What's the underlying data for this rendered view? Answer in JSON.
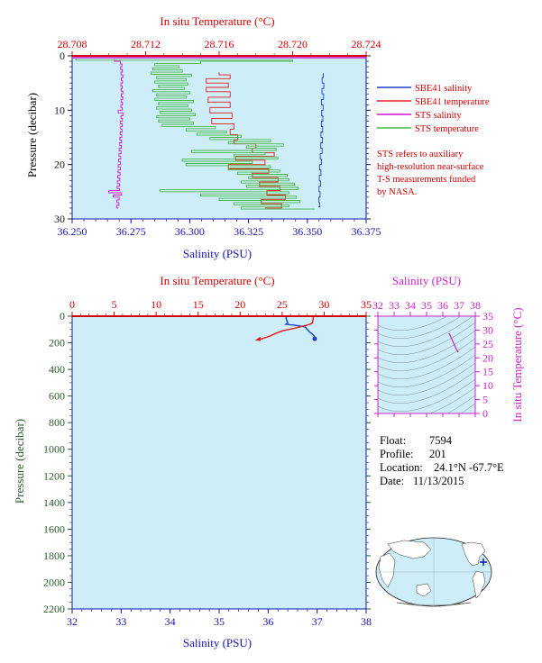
{
  "colors": {
    "plot_bg": "#cdeef9",
    "salinity_axis": "#1414b4",
    "temperature_axis": "#d40000",
    "sts_axis": "#cc22cc",
    "pressure_axis": "#2b5a2b",
    "sbe_salinity": "#1a3fc8",
    "sbe_temperature": "#e41a1a",
    "sts_salinity": "#d414d4",
    "sts_temperature": "#48b848",
    "ts_contours": "#7a8a96"
  },
  "chart_data": [
    {
      "id": "top-panel",
      "type": "line",
      "title": "",
      "top_axis_label": "In situ Temperature (°C)",
      "top_axis_ticks": [
        "28.708",
        "28.712",
        "28.716",
        "28.720",
        "28.724"
      ],
      "top_axis_range": [
        28.708,
        28.724
      ],
      "xlabel": "Salinity (PSU)",
      "x_ticks": [
        "36.250",
        "36.275",
        "36.300",
        "36.325",
        "36.350",
        "36.375"
      ],
      "xlim": [
        36.25,
        36.375
      ],
      "ylabel": "Pressure (decibar)",
      "y_ticks": [
        "0",
        "10",
        "20",
        "30"
      ],
      "ylim": [
        0,
        30
      ],
      "y_inverted": true,
      "legend": [
        "SBE41 salinity",
        "SBE41 temperature",
        "STS salinity",
        "STS temperature"
      ],
      "note": [
        "STS refers to auxiliary",
        "high-resolution near-surface",
        "T-S measurements funded",
        "by NASA."
      ],
      "series": [
        {
          "name": "SBE41 salinity",
          "axis": "salinity",
          "points": [
            [
              36.3568,
              3.2
            ],
            [
              36.3563,
              4.0
            ],
            [
              36.357,
              5.0
            ],
            [
              36.3562,
              6.0
            ],
            [
              36.3569,
              7.0
            ],
            [
              36.356,
              8.0
            ],
            [
              36.3567,
              9.0
            ],
            [
              36.3561,
              10.0
            ],
            [
              36.3566,
              11.0
            ],
            [
              36.356,
              12.0
            ],
            [
              36.3565,
              13.0
            ],
            [
              36.3558,
              14.0
            ],
            [
              36.3564,
              15.0
            ],
            [
              36.3557,
              16.0
            ],
            [
              36.3563,
              17.0
            ],
            [
              36.3555,
              18.0
            ],
            [
              36.356,
              19.0
            ],
            [
              36.3552,
              20.0
            ],
            [
              36.3558,
              21.0
            ],
            [
              36.3551,
              22.0
            ],
            [
              36.3556,
              23.0
            ],
            [
              36.355,
              24.0
            ],
            [
              36.3554,
              25.0
            ],
            [
              36.3549,
              26.0
            ],
            [
              36.3553,
              27.0
            ],
            [
              36.3548,
              27.8
            ]
          ]
        },
        {
          "name": "SBE41 temperature",
          "axis": "temperature",
          "points": [
            [
              28.716,
              3.0
            ],
            [
              28.7166,
              3.5
            ],
            [
              28.7153,
              4.2
            ],
            [
              28.7165,
              5.0
            ],
            [
              28.7153,
              5.8
            ],
            [
              28.7166,
              6.6
            ],
            [
              28.7154,
              7.6
            ],
            [
              28.7166,
              8.5
            ],
            [
              28.7155,
              9.5
            ],
            [
              28.7167,
              10.5
            ],
            [
              28.7156,
              11.5
            ],
            [
              28.7168,
              12.5
            ],
            [
              28.7166,
              13.5
            ],
            [
              28.717,
              14.5
            ],
            [
              28.7168,
              15.5
            ],
            [
              28.718,
              16.2
            ],
            [
              28.7178,
              17.0
            ],
            [
              28.719,
              17.8
            ],
            [
              28.7169,
              18.5
            ],
            [
              28.7185,
              19.2
            ],
            [
              28.7165,
              20.0
            ],
            [
              28.7187,
              20.8
            ],
            [
              28.7178,
              21.6
            ],
            [
              28.7192,
              22.4
            ],
            [
              28.7182,
              23.2
            ],
            [
              28.7193,
              24.0
            ],
            [
              28.7186,
              24.8
            ],
            [
              28.7196,
              25.6
            ],
            [
              28.7183,
              26.4
            ],
            [
              28.7194,
              27.2
            ],
            [
              28.7185,
              28.0
            ]
          ]
        },
        {
          "name": "STS salinity",
          "axis": "salinity",
          "points": [
            [
              36.268,
              0.6
            ],
            [
              36.2705,
              1.0
            ],
            [
              36.2712,
              1.5
            ],
            [
              36.2706,
              2.0
            ],
            [
              36.2713,
              2.5
            ],
            [
              36.2708,
              3.0
            ],
            [
              36.2716,
              3.5
            ],
            [
              36.2709,
              4.0
            ],
            [
              36.2714,
              4.5
            ],
            [
              36.2707,
              5.0
            ],
            [
              36.2713,
              5.5
            ],
            [
              36.2708,
              6.0
            ],
            [
              36.2716,
              6.5
            ],
            [
              36.2709,
              7.0
            ],
            [
              36.2715,
              7.5
            ],
            [
              36.2708,
              8.0
            ],
            [
              36.2714,
              8.5
            ],
            [
              36.2707,
              9.0
            ],
            [
              36.2713,
              9.5
            ],
            [
              36.2696,
              10.0
            ],
            [
              36.2716,
              10.5
            ],
            [
              36.2708,
              11.0
            ],
            [
              36.2714,
              11.5
            ],
            [
              36.2705,
              12.0
            ],
            [
              36.2713,
              12.5
            ],
            [
              36.2706,
              13.0
            ],
            [
              36.2712,
              13.5
            ],
            [
              36.2704,
              14.0
            ],
            [
              36.2711,
              14.5
            ],
            [
              36.2703,
              15.0
            ],
            [
              36.271,
              15.5
            ],
            [
              36.2702,
              16.0
            ],
            [
              36.2709,
              16.5
            ],
            [
              36.27,
              17.0
            ],
            [
              36.2708,
              17.5
            ],
            [
              36.2699,
              18.0
            ],
            [
              36.2707,
              18.5
            ],
            [
              36.2698,
              19.0
            ],
            [
              36.2706,
              19.5
            ],
            [
              36.2696,
              20.0
            ],
            [
              36.2705,
              20.5
            ],
            [
              36.2695,
              21.0
            ],
            [
              36.2704,
              21.5
            ],
            [
              36.2694,
              22.0
            ],
            [
              36.2703,
              22.5
            ],
            [
              36.2692,
              23.0
            ],
            [
              36.2702,
              23.5
            ],
            [
              36.2691,
              24.0
            ],
            [
              36.2701,
              24.4
            ],
            [
              36.2656,
              24.8
            ],
            [
              36.271,
              25.2
            ],
            [
              36.2675,
              25.6
            ],
            [
              36.27,
              26.0
            ],
            [
              36.269,
              26.5
            ],
            [
              36.2699,
              27.0
            ],
            [
              36.2689,
              27.5
            ],
            [
              36.2697,
              28.0
            ]
          ]
        },
        {
          "name": "STS temperature",
          "axis": "temperature",
          "points": [
            [
              28.7082,
              0.5
            ],
            [
              28.72,
              0.8
            ],
            [
              28.715,
              1.0
            ],
            [
              28.7125,
              1.4
            ],
            [
              28.7138,
              1.8
            ],
            [
              28.7124,
              2.2
            ],
            [
              28.714,
              2.6
            ],
            [
              28.7123,
              3.0
            ],
            [
              28.7145,
              3.4
            ],
            [
              28.7126,
              3.8
            ],
            [
              28.7142,
              4.2
            ],
            [
              28.7125,
              4.6
            ],
            [
              28.7143,
              5.0
            ],
            [
              28.7127,
              5.4
            ],
            [
              28.7141,
              5.8
            ],
            [
              28.7124,
              6.2
            ],
            [
              28.7144,
              6.6
            ],
            [
              28.7126,
              7.0
            ],
            [
              28.7142,
              7.4
            ],
            [
              28.7125,
              7.8
            ],
            [
              28.7146,
              8.2
            ],
            [
              28.7127,
              8.6
            ],
            [
              28.7143,
              9.0
            ],
            [
              28.7126,
              9.4
            ],
            [
              28.7145,
              9.8
            ],
            [
              28.7128,
              10.2
            ],
            [
              28.7147,
              10.6
            ],
            [
              28.7126,
              11.0
            ],
            [
              28.7144,
              11.4
            ],
            [
              28.7127,
              11.8
            ],
            [
              28.7146,
              12.2
            ],
            [
              28.7129,
              12.6
            ],
            [
              28.7158,
              13.0
            ],
            [
              28.7142,
              13.4
            ],
            [
              28.7164,
              13.8
            ],
            [
              28.7148,
              14.2
            ],
            [
              28.7172,
              14.6
            ],
            [
              28.7155,
              15.0
            ],
            [
              28.7188,
              15.4
            ],
            [
              28.7165,
              15.8
            ],
            [
              28.7195,
              16.2
            ],
            [
              28.7175,
              16.6
            ],
            [
              28.7191,
              17.0
            ],
            [
              28.7145,
              17.4
            ],
            [
              28.7185,
              17.8
            ],
            [
              28.7168,
              18.2
            ],
            [
              28.7192,
              18.6
            ],
            [
              28.714,
              19.0
            ],
            [
              28.7178,
              19.4
            ],
            [
              28.7142,
              19.8
            ],
            [
              28.7188,
              20.2
            ],
            [
              28.7165,
              20.6
            ],
            [
              28.7193,
              21.0
            ],
            [
              28.717,
              21.4
            ],
            [
              28.7197,
              21.8
            ],
            [
              28.7176,
              22.2
            ],
            [
              28.7198,
              22.6
            ],
            [
              28.7172,
              23.0
            ],
            [
              28.7201,
              23.4
            ],
            [
              28.7175,
              23.8
            ],
            [
              28.7203,
              24.2
            ],
            [
              28.7128,
              24.6
            ],
            [
              28.7198,
              25.0
            ],
            [
              28.715,
              25.4
            ],
            [
              28.7202,
              25.8
            ],
            [
              28.716,
              26.2
            ],
            [
              28.7204,
              26.6
            ],
            [
              28.7168,
              27.0
            ],
            [
              28.7198,
              27.4
            ],
            [
              28.7172,
              27.8
            ],
            [
              28.7212,
              28.2
            ]
          ]
        }
      ]
    },
    {
      "id": "bottom-panel",
      "type": "line",
      "title": "",
      "top_axis_label": "In situ Temperature (°C)",
      "top_axis_ticks": [
        "0",
        "5",
        "10",
        "15",
        "20",
        "25",
        "30",
        "35"
      ],
      "top_axis_range": [
        0,
        35
      ],
      "xlabel": "Salinity (PSU)",
      "x_ticks": [
        "32",
        "33",
        "34",
        "35",
        "36",
        "37",
        "38"
      ],
      "xlim": [
        32,
        38
      ],
      "ylabel": "Pressure (decibar)",
      "y_ticks": [
        "0",
        "200",
        "400",
        "600",
        "800",
        "1000",
        "1200",
        "1400",
        "1600",
        "1800",
        "2000",
        "2200"
      ],
      "ylim": [
        0,
        2200
      ],
      "y_inverted": true,
      "series": [
        {
          "name": "SBE41 salinity",
          "axis": "salinity",
          "points": [
            [
              36.36,
              0
            ],
            [
              36.37,
              20
            ],
            [
              36.4,
              50
            ],
            [
              36.36,
              60
            ],
            [
              36.58,
              70
            ],
            [
              36.75,
              80
            ],
            [
              36.8,
              100
            ],
            [
              36.85,
              120
            ],
            [
              36.92,
              140
            ],
            [
              36.96,
              160
            ],
            [
              36.95,
              170
            ]
          ]
        },
        {
          "name": "SBE41 temperature",
          "axis": "temperature",
          "points": [
            [
              28.7,
              0
            ],
            [
              28.7,
              20
            ],
            [
              28.6,
              50
            ],
            [
              28.3,
              60
            ],
            [
              27.8,
              70
            ],
            [
              26.5,
              90
            ],
            [
              25.0,
              110
            ],
            [
              24.2,
              130
            ],
            [
              23.5,
              150
            ],
            [
              22.6,
              170
            ],
            [
              22.0,
              180
            ]
          ]
        }
      ]
    },
    {
      "id": "ts-diagram",
      "type": "line",
      "title": "",
      "top_axis_label": "Salinity (PSU)",
      "x_ticks": [
        "32",
        "33",
        "34",
        "35",
        "36",
        "37",
        "38"
      ],
      "xlim": [
        32,
        38
      ],
      "ylabel": "In situ Temperature (°C)",
      "y_ticks": [
        "0",
        "5",
        "10",
        "15",
        "20",
        "25",
        "30",
        "35"
      ],
      "ylim": [
        0,
        35
      ],
      "series": [
        {
          "name": "T-S profile",
          "points": [
            [
              36.36,
              28.7
            ],
            [
              36.4,
              28.6
            ],
            [
              36.5,
              27.5
            ],
            [
              36.6,
              26.2
            ],
            [
              36.7,
              24.8
            ],
            [
              36.8,
              23.6
            ],
            [
              36.9,
              22.5
            ],
            [
              36.95,
              22.0
            ]
          ]
        }
      ]
    }
  ],
  "float_info": {
    "float_label": "Float:",
    "float_value": "7594",
    "profile_label": "Profile:",
    "profile_value": "201",
    "location_label": "Location:",
    "location_value": "24.1°N  -67.7°E",
    "date_label": "Date:",
    "date_value": "11/13/2015"
  },
  "map": {
    "marker_lat": 24.1,
    "marker_lon": -67.7
  }
}
